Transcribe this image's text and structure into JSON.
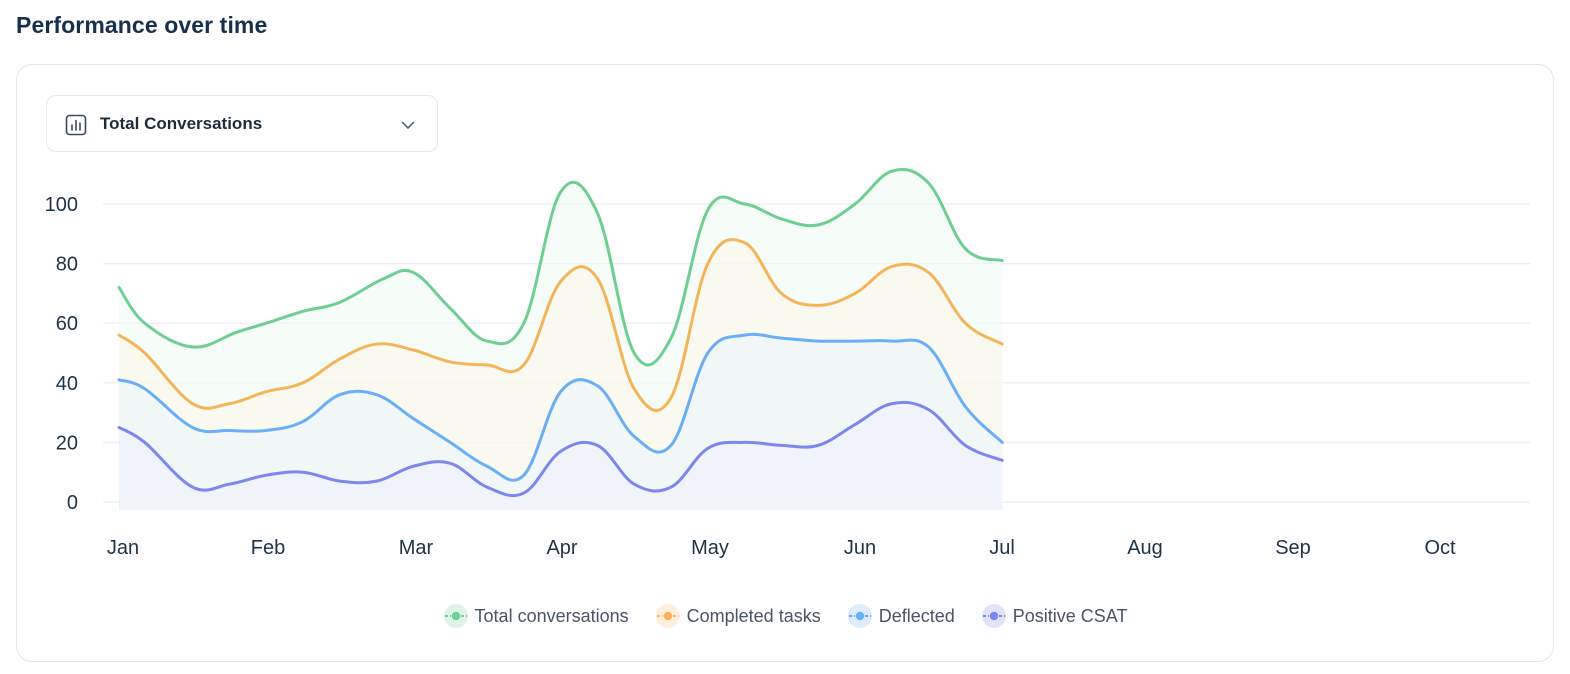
{
  "page": {
    "title": "Performance over time"
  },
  "dropdown": {
    "label": "Total Conversations",
    "icon": "bar-chart-icon",
    "chevron": "chevron-down-icon"
  },
  "colors": {
    "total": "#6fcf93",
    "completed": "#f5b45a",
    "deflected": "#6aaef5",
    "csat": "#7b86ee",
    "total_fill": "#eefaf2",
    "completed_fill": "#fef6ea",
    "deflected_fill": "#e9f6fd",
    "csat_fill": "#eef0fd",
    "grid": "#ebeef1",
    "axis_text": "#1f3347"
  },
  "chart_data": {
    "type": "area",
    "x": [
      "Jan",
      "Feb",
      "Mar",
      "Apr",
      "May",
      "Jun",
      "Jul",
      "Aug",
      "Sep",
      "Oct"
    ],
    "ylim": [
      0,
      100
    ],
    "yticks": [
      0,
      20,
      40,
      60,
      80,
      100
    ],
    "grid": true,
    "legend_position": "bottom-center",
    "series": [
      {
        "name": "Total conversations",
        "key": "total",
        "values": [
          [
            0.0,
            72
          ],
          [
            0.35,
            60
          ],
          [
            1.0,
            52
          ],
          [
            1.6,
            57
          ],
          [
            2.0,
            60
          ],
          [
            2.5,
            64
          ],
          [
            3.0,
            67
          ],
          [
            3.6,
            75
          ],
          [
            4.0,
            77
          ],
          [
            4.5,
            65
          ],
          [
            5.0,
            54
          ],
          [
            5.5,
            60
          ],
          [
            6.0,
            104
          ],
          [
            6.5,
            97
          ],
          [
            7.0,
            50
          ],
          [
            7.5,
            55
          ],
          [
            8.0,
            98
          ],
          [
            8.5,
            100
          ],
          [
            9.0,
            95
          ],
          [
            9.5,
            93
          ],
          [
            10.0,
            100
          ],
          [
            10.5,
            111
          ],
          [
            11.0,
            107
          ],
          [
            11.5,
            85
          ],
          [
            12.0,
            81
          ]
        ]
      },
      {
        "name": "Completed tasks",
        "key": "completed",
        "values": [
          [
            0.0,
            56
          ],
          [
            0.35,
            50
          ],
          [
            1.0,
            33
          ],
          [
            1.5,
            33
          ],
          [
            2.0,
            37
          ],
          [
            2.5,
            40
          ],
          [
            3.0,
            48
          ],
          [
            3.5,
            53
          ],
          [
            4.0,
            51
          ],
          [
            4.5,
            47
          ],
          [
            5.0,
            46
          ],
          [
            5.5,
            46
          ],
          [
            6.0,
            74
          ],
          [
            6.5,
            75
          ],
          [
            7.0,
            38
          ],
          [
            7.5,
            35
          ],
          [
            8.0,
            80
          ],
          [
            8.5,
            87
          ],
          [
            9.0,
            70
          ],
          [
            9.5,
            66
          ],
          [
            10.0,
            70
          ],
          [
            10.5,
            79
          ],
          [
            11.0,
            77
          ],
          [
            11.5,
            60
          ],
          [
            12.0,
            53
          ]
        ]
      },
      {
        "name": "Deflected",
        "key": "deflected",
        "values": [
          [
            0.0,
            41
          ],
          [
            0.35,
            38
          ],
          [
            1.0,
            25
          ],
          [
            1.5,
            24
          ],
          [
            2.0,
            24
          ],
          [
            2.5,
            27
          ],
          [
            3.0,
            36
          ],
          [
            3.5,
            36
          ],
          [
            4.0,
            28
          ],
          [
            4.5,
            20
          ],
          [
            5.0,
            12
          ],
          [
            5.5,
            9
          ],
          [
            6.0,
            37
          ],
          [
            6.5,
            39
          ],
          [
            7.0,
            22
          ],
          [
            7.5,
            19
          ],
          [
            8.0,
            50
          ],
          [
            8.5,
            56
          ],
          [
            9.0,
            55
          ],
          [
            9.5,
            54
          ],
          [
            10.0,
            54
          ],
          [
            10.5,
            54
          ],
          [
            11.0,
            52
          ],
          [
            11.5,
            32
          ],
          [
            12.0,
            20
          ]
        ]
      },
      {
        "name": "Positive CSAT",
        "key": "csat",
        "values": [
          [
            0.0,
            25
          ],
          [
            0.35,
            20
          ],
          [
            1.0,
            5
          ],
          [
            1.5,
            6
          ],
          [
            2.0,
            9
          ],
          [
            2.5,
            10
          ],
          [
            3.0,
            7
          ],
          [
            3.5,
            7
          ],
          [
            4.0,
            12
          ],
          [
            4.5,
            13
          ],
          [
            5.0,
            5
          ],
          [
            5.5,
            3
          ],
          [
            6.0,
            17
          ],
          [
            6.5,
            19
          ],
          [
            7.0,
            6
          ],
          [
            7.5,
            5
          ],
          [
            8.0,
            18
          ],
          [
            8.5,
            20
          ],
          [
            9.0,
            19
          ],
          [
            9.5,
            19
          ],
          [
            10.0,
            26
          ],
          [
            10.5,
            33
          ],
          [
            11.0,
            31
          ],
          [
            11.5,
            19
          ],
          [
            12.0,
            14
          ]
        ]
      }
    ]
  },
  "legend": [
    {
      "label": "Total conversations",
      "key": "total"
    },
    {
      "label": "Completed tasks",
      "key": "completed"
    },
    {
      "label": "Deflected",
      "key": "deflected"
    },
    {
      "label": "Positive CSAT",
      "key": "csat"
    }
  ]
}
